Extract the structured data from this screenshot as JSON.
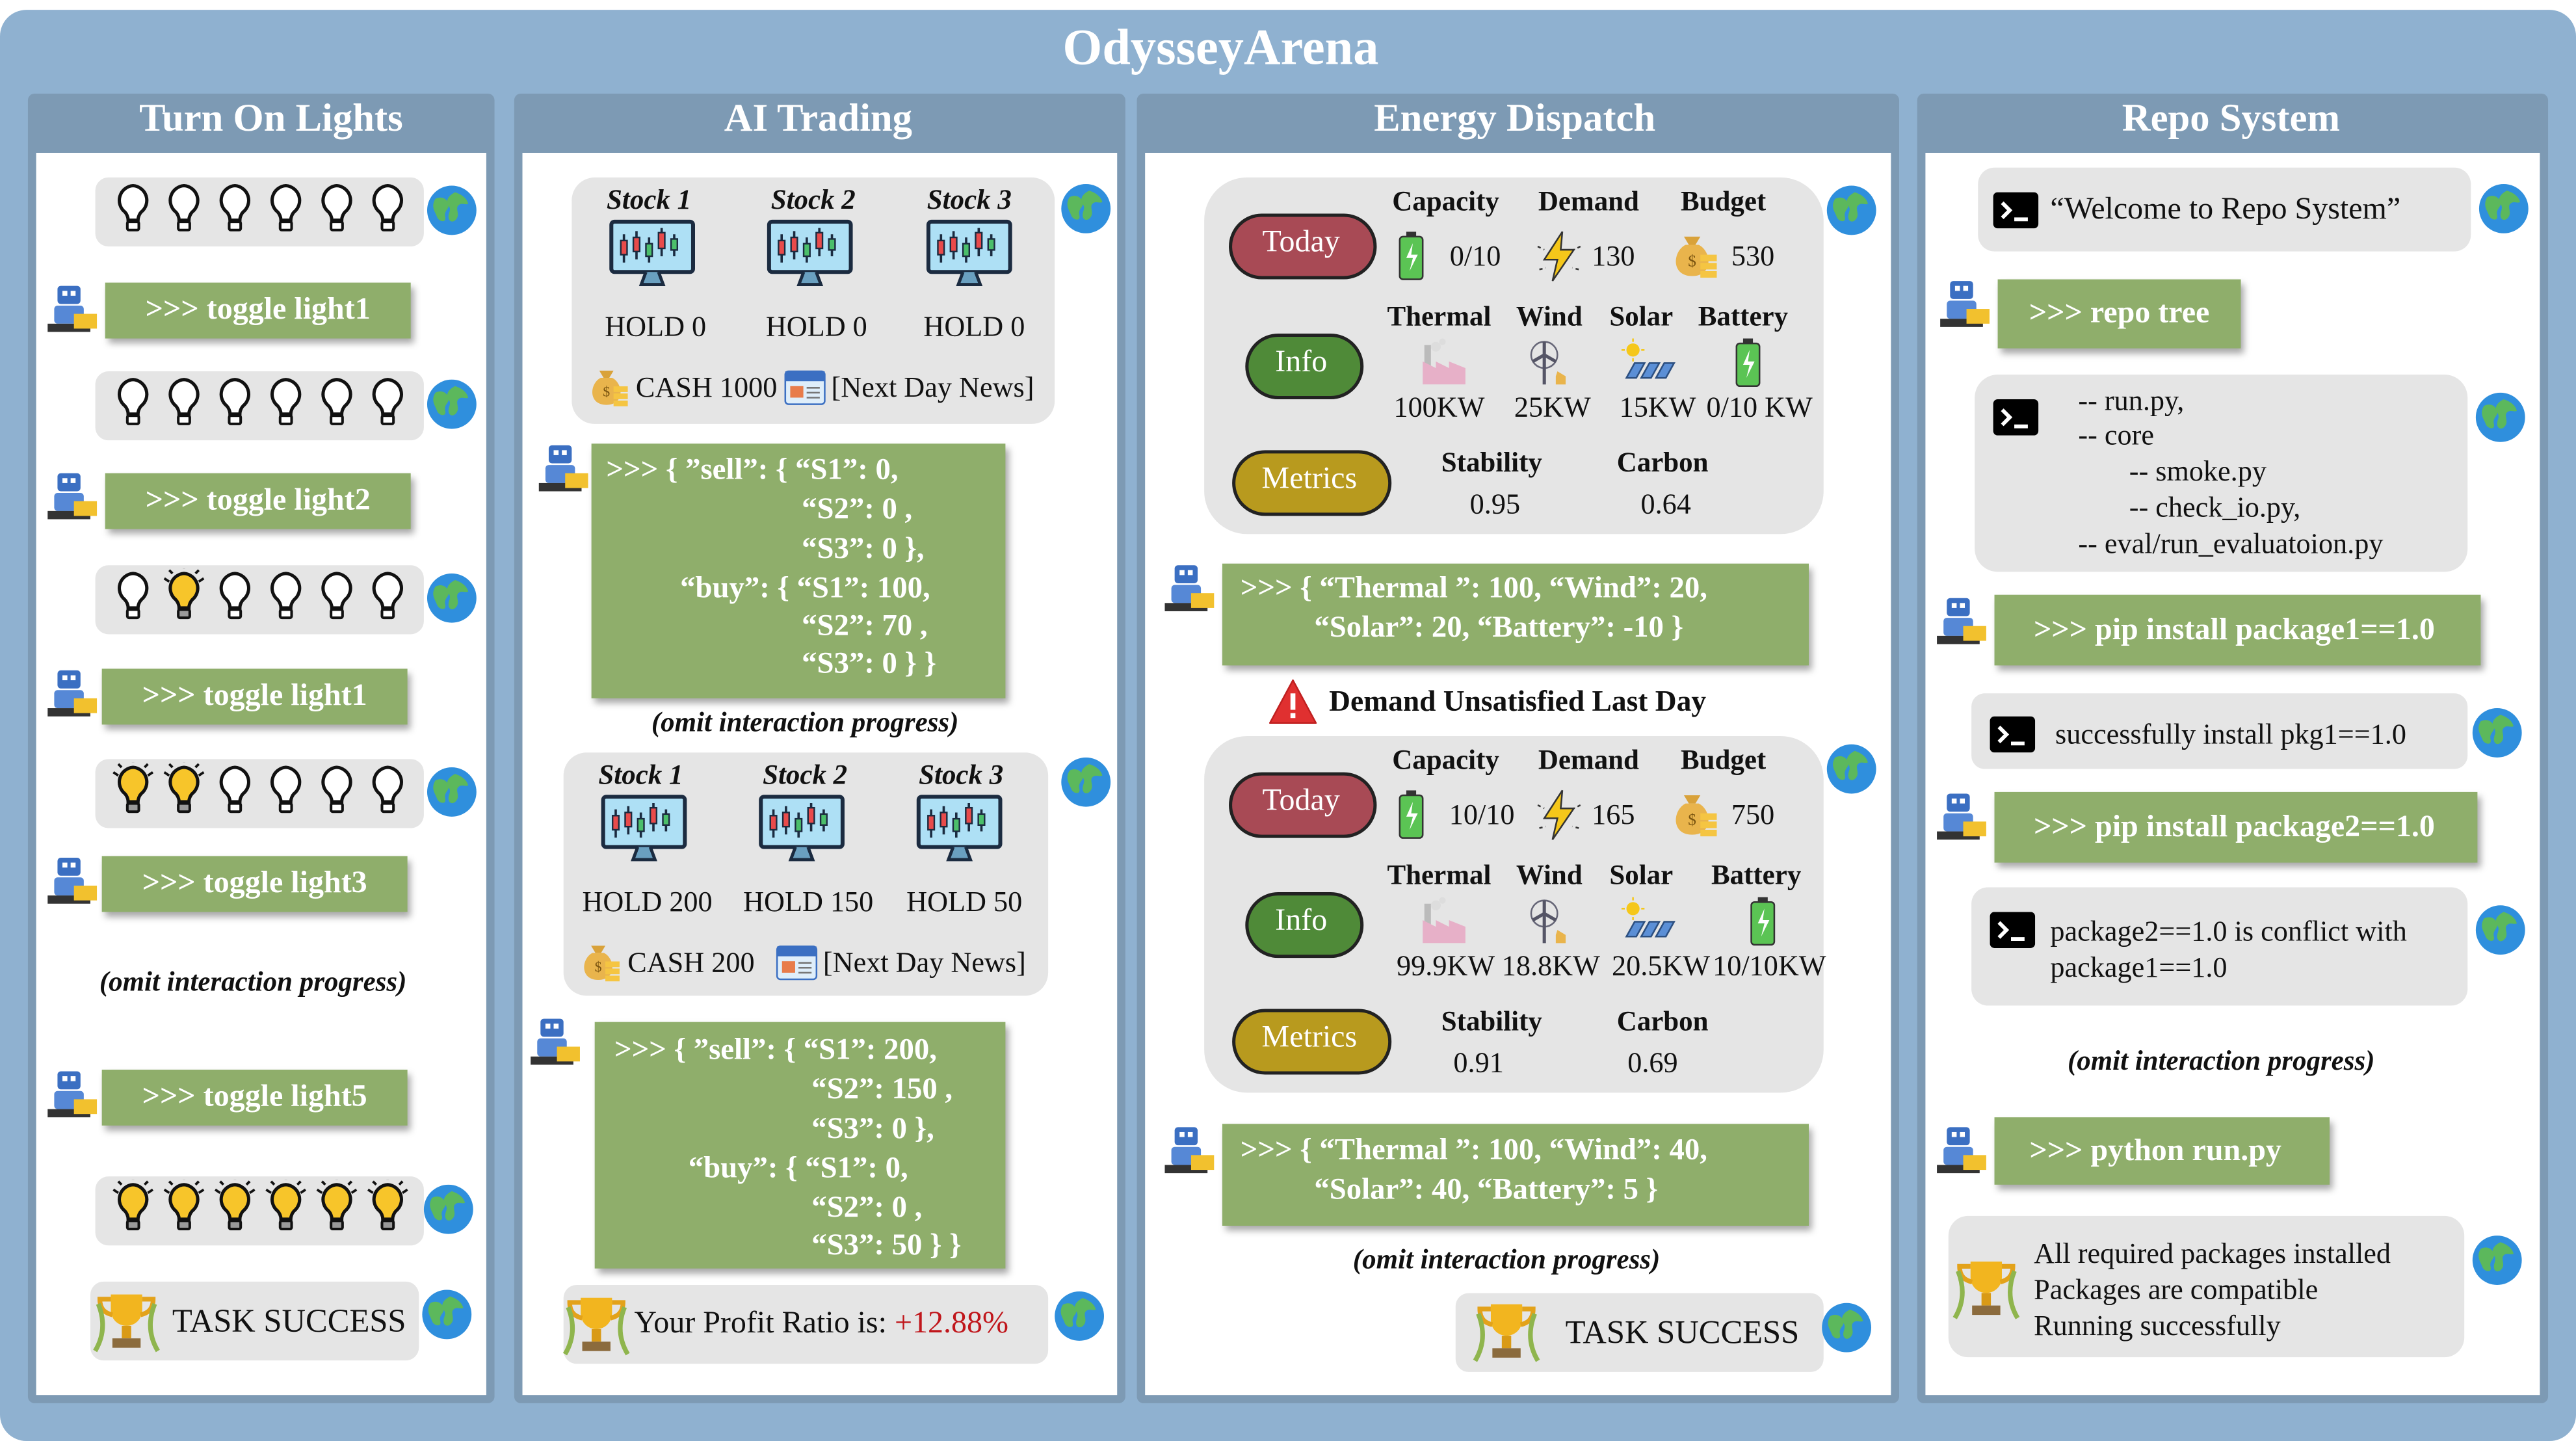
{
  "title": "OdysseyArena",
  "panels": [
    {
      "title": "Turn On Lights",
      "commands": [
        ">>> toggle light1",
        ">>> toggle light2",
        ">>> toggle light1",
        ">>> toggle light3",
        ">>> toggle light5"
      ],
      "omit": "(omit interaction progress)",
      "result": "TASK SUCCESS"
    },
    {
      "title": "AI Trading",
      "states": [
        {
          "stocks": [
            "Stock 1",
            "Stock 2",
            "Stock 3"
          ],
          "holds": [
            "HOLD 0",
            "HOLD 0",
            "HOLD 0"
          ],
          "cash": "CASH 1000",
          "news": "[Next Day News]"
        },
        {
          "stocks": [
            "Stock 1",
            "Stock 2",
            "Stock 3"
          ],
          "holds": [
            "HOLD 200",
            "HOLD 150",
            "HOLD 50"
          ],
          "cash": "CASH 200",
          "news": "[Next Day News]"
        }
      ],
      "actions": [
        [
          ">>> { ”sell”: { “S1”: 0,",
          "“S2”: 0 ,",
          "“S3”: 0 },",
          "“buy”: { “S1”: 100,",
          "“S2”: 70 ,",
          "“S3”: 0 } }"
        ],
        [
          ">>> { ”sell”: { “S1”: 200,",
          "“S2”: 150 ,",
          "“S3”: 0 },",
          "“buy”: { “S1”: 0,",
          "“S2”: 0 ,",
          "“S3”: 50 } }"
        ]
      ],
      "omit": "(omit interaction progress)",
      "result_label": "Your Profit Ratio is:",
      "result_value": "+12.88%"
    },
    {
      "title": "Energy Dispatch",
      "states": [
        {
          "today": "Today",
          "headers": [
            "Capacity",
            "Demand",
            "Budget"
          ],
          "values": [
            "0/10",
            "130",
            "530"
          ],
          "info": "Info",
          "info_headers": [
            "Thermal",
            "Wind",
            "Solar",
            "Battery"
          ],
          "info_values": [
            "100KW",
            "25KW",
            "15KW",
            "0/10 KW"
          ],
          "metrics": "Metrics",
          "metric_headers": [
            "Stability",
            "Carbon"
          ],
          "metric_values": [
            "0.95",
            "0.64"
          ]
        },
        {
          "today": "Today",
          "headers": [
            "Capacity",
            "Demand",
            "Budget"
          ],
          "values": [
            "10/10",
            "165",
            "750"
          ],
          "info": "Info",
          "info_headers": [
            "Thermal",
            "Wind",
            "Solar",
            "Battery"
          ],
          "info_values": [
            "99.9KW",
            "18.8KW",
            "20.5KW",
            "10/10KW"
          ],
          "metrics": "Metrics",
          "metric_headers": [
            "Stability",
            "Carbon"
          ],
          "metric_values": [
            "0.91",
            "0.69"
          ]
        }
      ],
      "actions": [
        [
          ">>> { “Thermal ”: 100,  “Wind”: 20,",
          "“Solar”: 20, “Battery”: -10 }"
        ],
        [
          ">>> { “Thermal ”: 100,  “Wind”: 40,",
          "“Solar”: 40, “Battery”: 5 }"
        ]
      ],
      "warning": "Demand Unsatisfied Last Day",
      "omit": "(omit interaction progress)",
      "result": "TASK SUCCESS"
    },
    {
      "title": "Repo System",
      "welcome": "“Welcome to Repo System”",
      "commands": [
        ">>> repo tree",
        ">>> pip install package1==1.0",
        ">>> pip install package2==1.0",
        ">>> python run.py"
      ],
      "tree": [
        "-- run.py,",
        "-- core",
        "-- smoke.py",
        "-- check_io.py,",
        "-- eval/run_evaluatoion.py"
      ],
      "install_ok": "successfully install pkg1==1.0",
      "conflict": [
        "package2==1.0 is conflict with",
        "package1==1.0"
      ],
      "omit": "(omit interaction progress)",
      "result": [
        "All required packages installed",
        "Packages are compatible",
        "Running successfully"
      ]
    }
  ]
}
